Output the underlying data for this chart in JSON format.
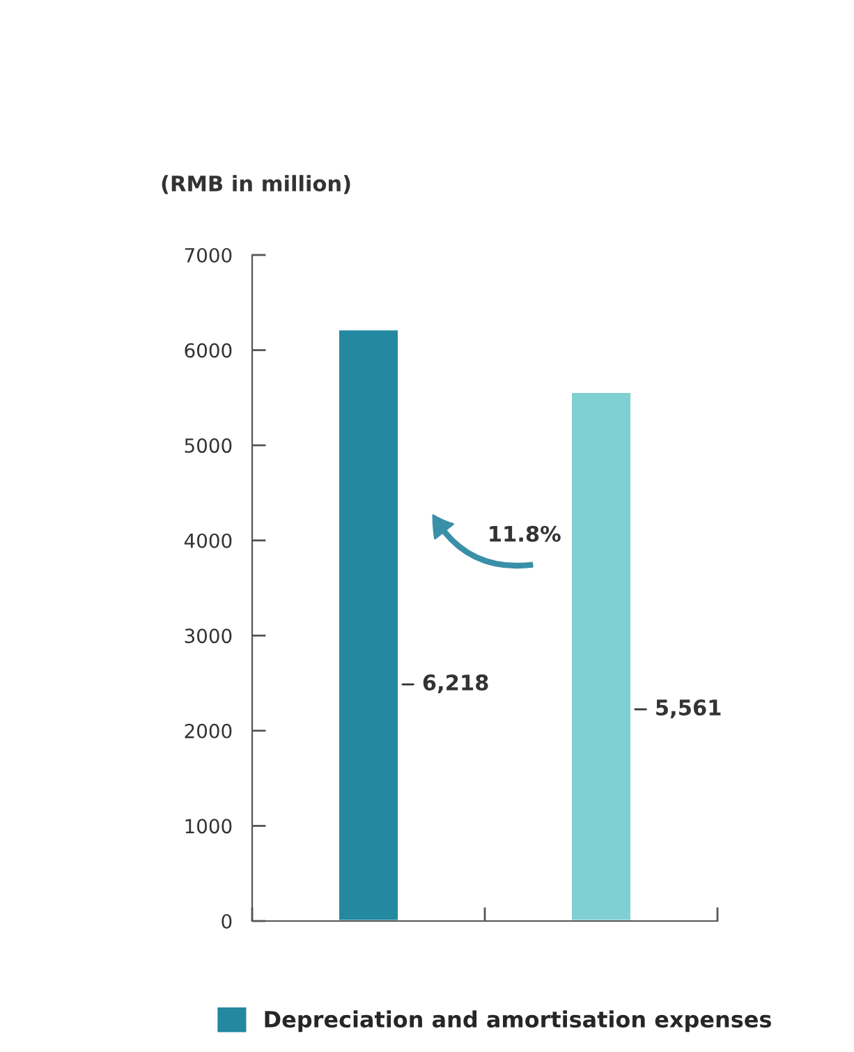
{
  "chart_data": {
    "type": "bar",
    "ylabel": "(RMB in million)",
    "categories": [
      null,
      null
    ],
    "series": [
      {
        "name": "Depreciation and amortisation expenses",
        "color": "#2388a0",
        "colors": [
          "#2388a0",
          "#80d0d3"
        ],
        "values": [
          6218,
          5561
        ]
      }
    ],
    "ylim": [
      0,
      7000
    ],
    "yticks": [
      0,
      1000,
      2000,
      3000,
      4000,
      5000,
      6000,
      7000
    ],
    "value_labels": [
      "6,218",
      "5,561"
    ],
    "annotations": [
      "11.8%"
    ],
    "legend": "bottom",
    "grid": false
  }
}
